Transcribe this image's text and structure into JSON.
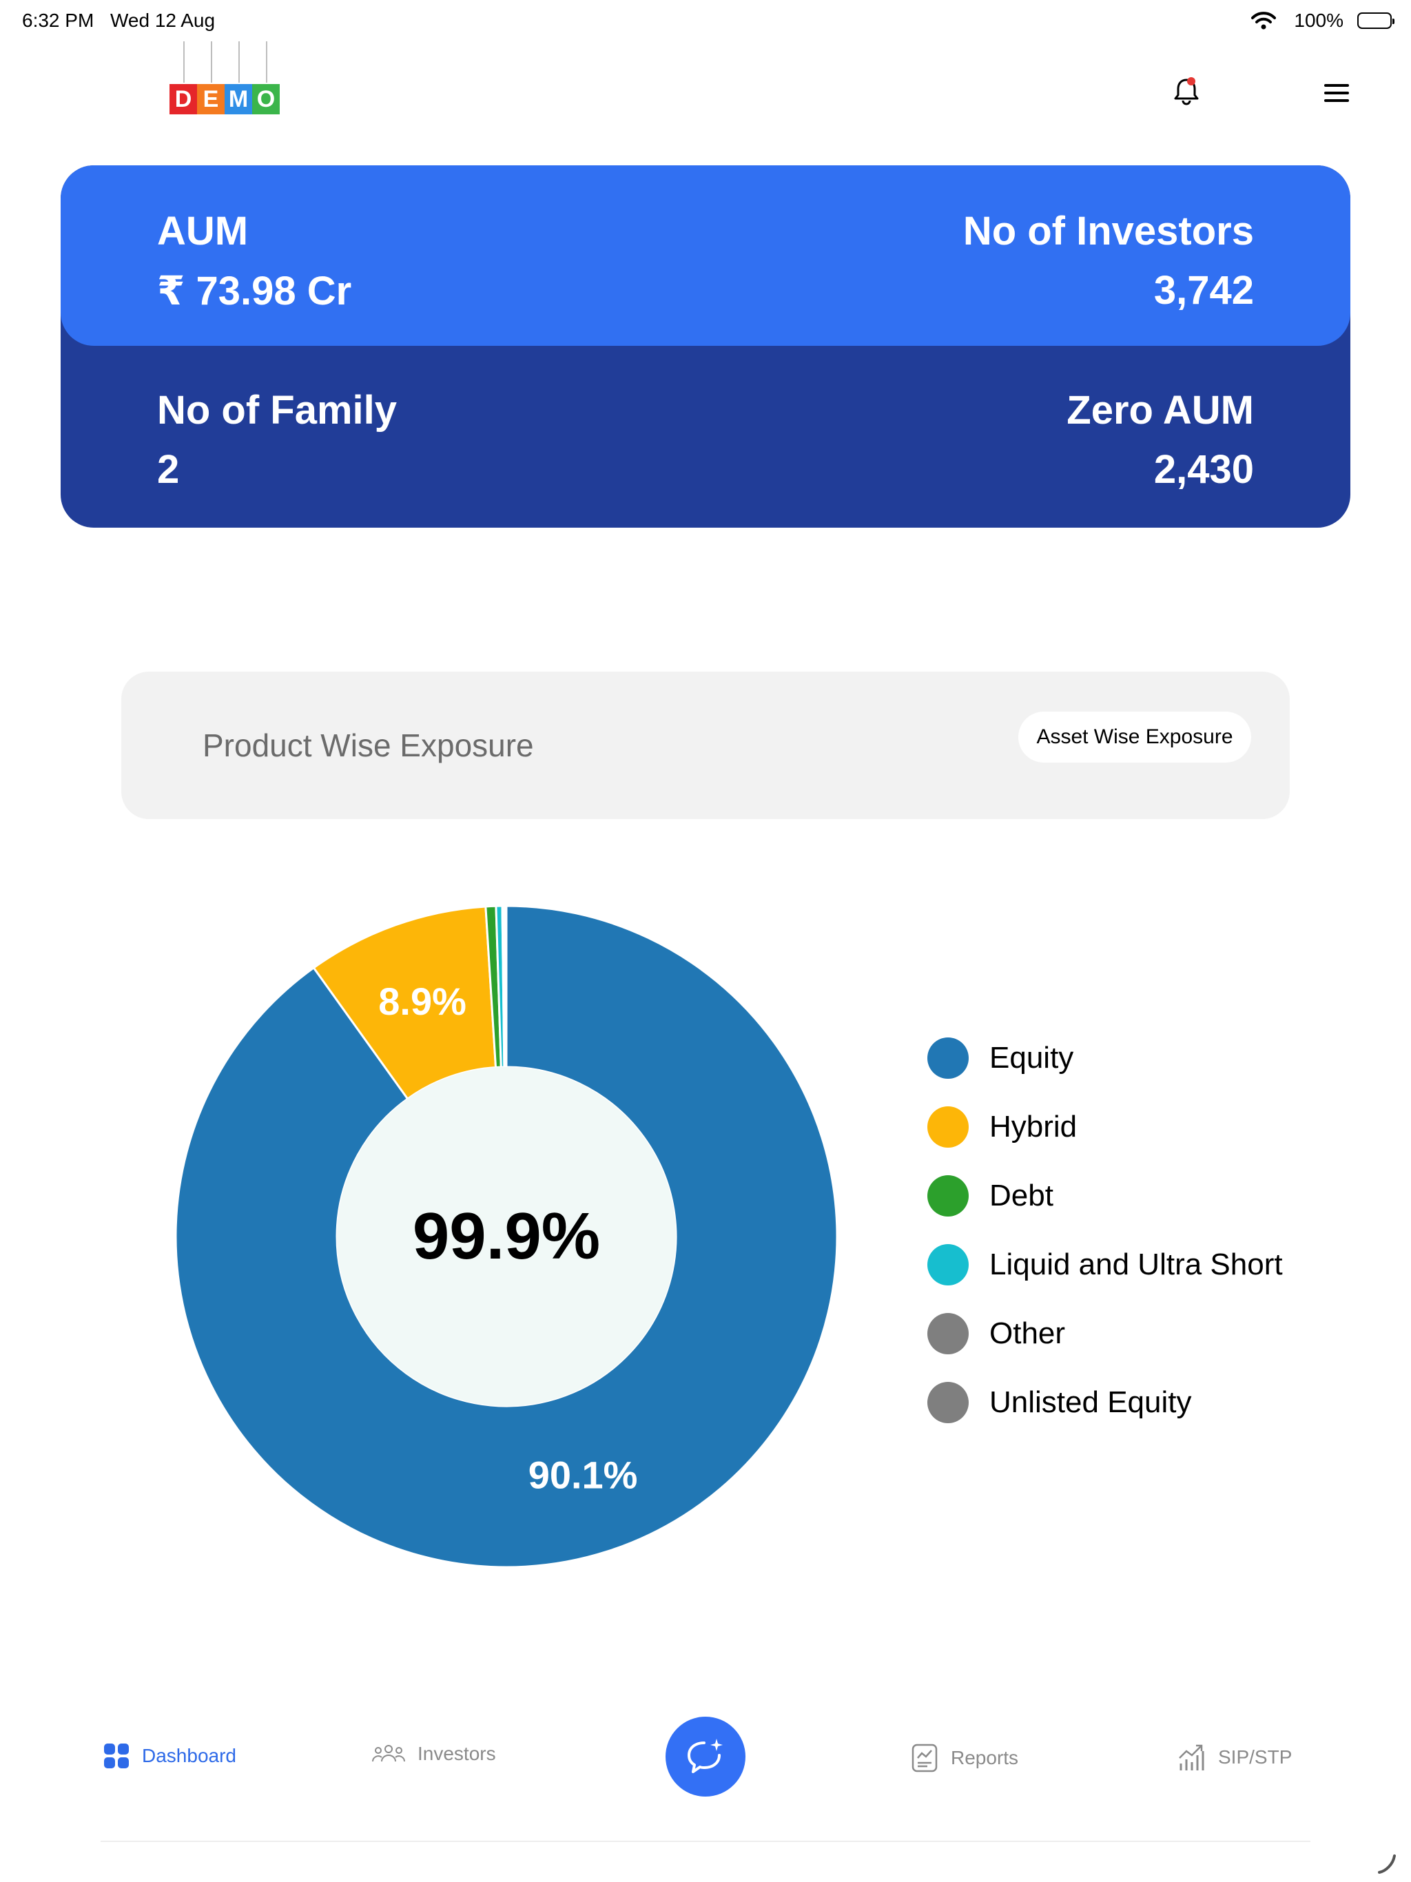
{
  "status_bar": {
    "time": "6:32 PM",
    "date": "Wed 12 Aug",
    "battery": "100%"
  },
  "header": {
    "logo_letters": [
      "D",
      "E",
      "M",
      "O"
    ],
    "logo_colors": [
      "#e5262a",
      "#f47a20",
      "#2e8ee6",
      "#3bb54a"
    ],
    "notification_icon": "bell-icon",
    "menu_icon": "hamburger-icon",
    "accent": "#e53935"
  },
  "stats": {
    "aum_label": "AUM",
    "aum_value": "₹ 73.98 Cr",
    "investors_label": "No of Investors",
    "investors_value": "3,742",
    "family_label": "No of Family",
    "family_value": "2",
    "zero_aum_label": "Zero AUM",
    "zero_aum_value": "2,430",
    "top_color": "#3170f2",
    "bottom_color": "#213d98"
  },
  "exposure_toggle": {
    "active": "Product Wise Exposure",
    "option": "Asset Wise Exposure"
  },
  "chart_data": {
    "type": "pie",
    "center_label": "99.9%",
    "slice_labels": [
      "90.1%",
      "8.9%"
    ],
    "series": [
      {
        "name": "Equity",
        "value": 90.1,
        "color": "#2177b4"
      },
      {
        "name": "Hybrid",
        "value": 8.9,
        "color": "#fdb608"
      },
      {
        "name": "Debt",
        "value": 0.5,
        "color": "#2ca02c"
      },
      {
        "name": "Liquid and Ultra Short",
        "value": 0.3,
        "color": "#17becf"
      },
      {
        "name": "Other",
        "value": 0.1,
        "color": "#7f7f7f"
      },
      {
        "name": "Unlisted Equity",
        "value": 0.1,
        "color": "#7f7f7f"
      }
    ],
    "legend_position": "right"
  },
  "bottom_nav": {
    "items": [
      {
        "label": "Dashboard",
        "icon": "dashboard-icon"
      },
      {
        "label": "Investors",
        "icon": "investors-icon"
      },
      {
        "label": "Reports",
        "icon": "reports-icon"
      },
      {
        "label": "SIP/STP",
        "icon": "sip-stp-icon"
      }
    ],
    "fab_icon": "chat-sparkle-icon"
  }
}
